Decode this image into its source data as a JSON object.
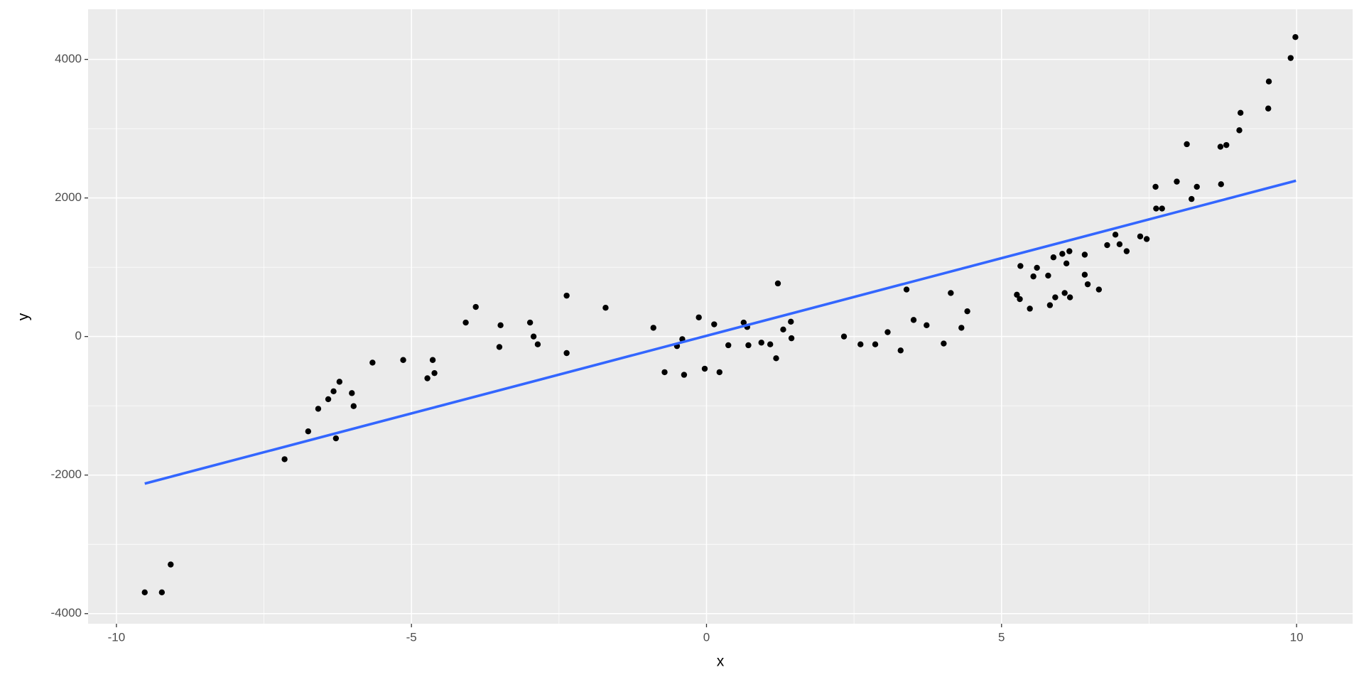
{
  "chart_data": {
    "type": "scatter",
    "x_label": "x",
    "y_label": "y",
    "xlim": [
      -10.48,
      10.95
    ],
    "ylim": [
      -4146,
      4724
    ],
    "xticks": [
      -10,
      -5,
      0,
      5,
      10
    ],
    "yticks": [
      -4000,
      -2000,
      0,
      2000,
      4000
    ],
    "grid": true,
    "minor_grid": true,
    "panel_color": "#ebebeb",
    "series": [
      {
        "type": "scatter",
        "color": "#000000",
        "x": [
          -9.52,
          -9.23,
          -9.08,
          -7.15,
          -6.75,
          -6.58,
          -6.41,
          -6.32,
          -6.28,
          -6.22,
          -6.01,
          -5.98,
          -5.66,
          -5.14,
          -4.73,
          -4.64,
          -4.61,
          -4.08,
          -3.91,
          -3.49,
          -3.51,
          -2.99,
          -2.93,
          -2.86,
          -2.37,
          -2.37,
          -1.71,
          -0.9,
          -0.71,
          -0.5,
          -0.41,
          -0.38,
          -0.13,
          -0.03,
          0.13,
          0.22,
          0.37,
          0.63,
          0.69,
          0.71,
          0.93,
          1.08,
          1.18,
          1.21,
          1.3,
          1.43,
          1.44,
          2.33,
          2.61,
          2.86,
          3.07,
          3.29,
          3.39,
          3.51,
          3.73,
          4.02,
          4.14,
          4.32,
          4.42,
          5.26,
          5.31,
          5.32,
          5.48,
          5.54,
          5.6,
          5.79,
          5.82,
          5.88,
          5.91,
          6.03,
          6.07,
          6.1,
          6.15,
          6.16,
          6.41,
          6.41,
          6.46,
          6.65,
          6.79,
          6.93,
          7.0,
          7.12,
          7.35,
          7.46,
          7.61,
          7.62,
          7.72,
          7.97,
          8.14,
          8.22,
          8.31,
          8.71,
          8.72,
          8.81,
          9.03,
          9.05,
          9.52,
          9.53,
          9.9,
          9.98
        ],
        "y": [
          -3693,
          -3693,
          -3291,
          -1771,
          -1369,
          -1043,
          -905,
          -791,
          -1470,
          -653,
          -817,
          -1005,
          -377,
          -339,
          -603,
          -339,
          -528,
          201,
          427,
          163,
          -151,
          201,
          0,
          -113,
          590,
          -239,
          415,
          126,
          -515,
          -138,
          -38,
          -553,
          276,
          -465,
          176,
          -515,
          -126,
          201,
          138,
          -126,
          -88,
          -113,
          -314,
          766,
          101,
          214,
          -25,
          0,
          -113,
          -113,
          63,
          -201,
          678,
          239,
          163,
          -101,
          628,
          126,
          364,
          603,
          540,
          1018,
          402,
          867,
          992,
          879,
          452,
          1143,
          565,
          1193,
          628,
          1055,
          1231,
          565,
          1181,
          892,
          754,
          678,
          1319,
          1470,
          1332,
          1231,
          1445,
          1407,
          2161,
          1847,
          1847,
          2236,
          2776,
          1985,
          2161,
          2739,
          2198,
          2764,
          2977,
          3229,
          3291,
          3681,
          4020,
          4322
        ]
      },
      {
        "type": "line",
        "color": "#3366ff",
        "x": [
          -9.52,
          9.99
        ],
        "y": [
          -2123,
          2249
        ]
      }
    ]
  }
}
